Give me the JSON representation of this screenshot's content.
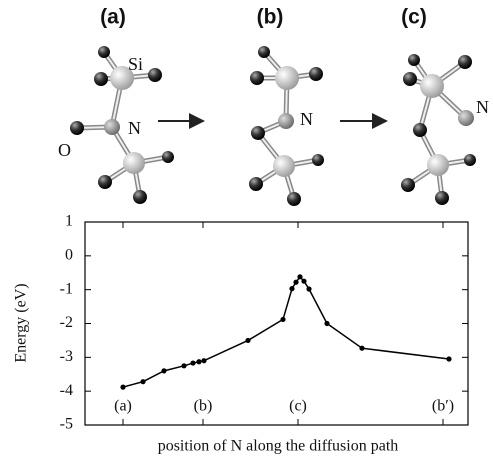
{
  "diagram": {
    "panel_labels": [
      "(a)",
      "(b)",
      "(c)"
    ],
    "atom_labels": [
      "Si",
      "N",
      "O",
      "N",
      "N"
    ]
  },
  "chart_data": {
    "type": "line",
    "x_label": "position of N along the diffusion path",
    "y_label": "Energy (eV)",
    "x": [
      38,
      58,
      79,
      99,
      108,
      114,
      119,
      163,
      198,
      207,
      211,
      215,
      219,
      224,
      242,
      277,
      364
    ],
    "values": [
      -3.88,
      -3.72,
      -3.4,
      -3.25,
      -3.17,
      -3.13,
      -3.1,
      -2.5,
      -1.88,
      -0.97,
      -0.78,
      -0.62,
      -0.75,
      -0.98,
      -2.0,
      -2.73,
      -3.05
    ],
    "color": "#000000",
    "xlim": [
      0,
      383
    ],
    "xticks": [
      {
        "value": 38,
        "label": "(a)"
      },
      {
        "value": 118,
        "label": "(b)"
      },
      {
        "value": 213,
        "label": "(c)"
      },
      {
        "value": 358,
        "label": "(b′)"
      }
    ],
    "ylim": [
      -5,
      1
    ],
    "yticks": [
      -5,
      -4,
      -3,
      -2,
      -1,
      0,
      1
    ],
    "grid": false
  }
}
